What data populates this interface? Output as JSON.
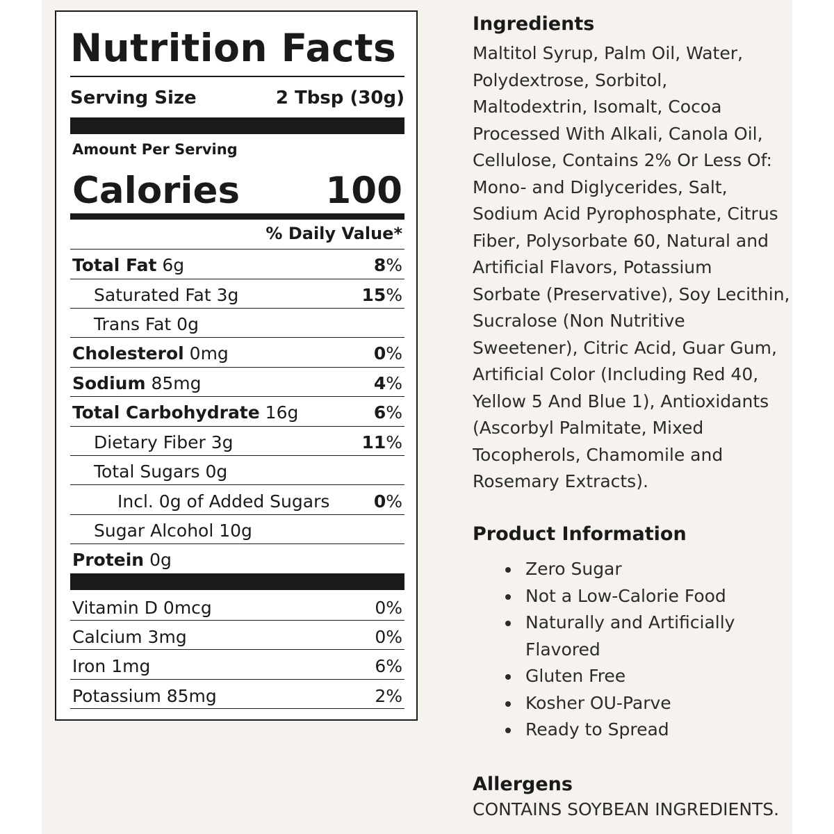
{
  "nutrition_facts": {
    "title": "Nutrition Facts",
    "serving_size_label": "Serving Size",
    "serving_size_value": "2 Tbsp (30g)",
    "amount_per_serving": "Amount Per Serving",
    "calories_label": "Calories",
    "calories_value": "100",
    "daily_value_header": "% Daily Value*",
    "nutrients": [
      {
        "name": "Total Fat",
        "amount": "6g",
        "pct": "8",
        "pct_suffix": "%"
      },
      {
        "name": "Saturated Fat 3g",
        "pct": "15",
        "pct_suffix": "%"
      },
      {
        "name": "Trans Fat 0g"
      },
      {
        "name": "Cholesterol",
        "amount": "0mg",
        "pct": "0",
        "pct_suffix": "%"
      },
      {
        "name": "Sodium",
        "amount": "85mg",
        "pct": "4",
        "pct_suffix": "%"
      },
      {
        "name": "Total Carbohydrate",
        "amount": "16g",
        "pct": "6",
        "pct_suffix": "%"
      },
      {
        "name": "Dietary Fiber 3g",
        "pct": "11",
        "pct_suffix": "%"
      },
      {
        "name": "Total Sugars 0g"
      },
      {
        "name": "Incl. 0g of Added Sugars",
        "pct": "0",
        "pct_suffix": "%"
      },
      {
        "name": "Sugar Alcohol 10g"
      },
      {
        "name": "Protein",
        "amount": "0g"
      }
    ],
    "vitamins": [
      {
        "name": "Vitamin D 0mcg",
        "pct": "0%"
      },
      {
        "name": "Calcium 3mg",
        "pct": "0%"
      },
      {
        "name": "Iron 1mg",
        "pct": "6%"
      },
      {
        "name": "Potassium 85mg",
        "pct": "2%"
      }
    ]
  },
  "ingredients": {
    "heading": "Ingredients",
    "lines": [
      "Maltitol Syrup, Palm Oil, Water,",
      "Polydextrose, Sorbitol,",
      "Maltodextrin, Isomalt, Cocoa",
      "Processed With Alkali, Canola Oil,",
      "Cellulose, Contains 2% Or Less Of:",
      "Mono- and Diglycerides, Salt,",
      "Sodium Acid Pyrophosphate, Citrus",
      "Fiber, Polysorbate 60, Natural and",
      "Artificial Flavors, Potassium",
      "Sorbate (Preservative), Soy Lecithin,",
      "Sucralose (Non Nutritive",
      "Sweetener), Citric Acid, Guar Gum,",
      "Artificial Color (Including Red 40,",
      "Yellow 5 And Blue 1), Antioxidants",
      "(Ascorbyl Palmitate, Mixed",
      "Tocopherols, Chamomile and",
      "Rosemary Extracts)."
    ]
  },
  "product_information": {
    "heading": "Product Information",
    "items": [
      "Zero Sugar",
      "Not a Low-Calorie Food",
      "Naturally and Artificially Flavored",
      "Gluten Free",
      "Kosher OU-Parve",
      "Ready to Spread"
    ]
  },
  "allergens": {
    "heading": "Allergens",
    "text": "CONTAINS SOYBEAN INGREDIENTS."
  }
}
